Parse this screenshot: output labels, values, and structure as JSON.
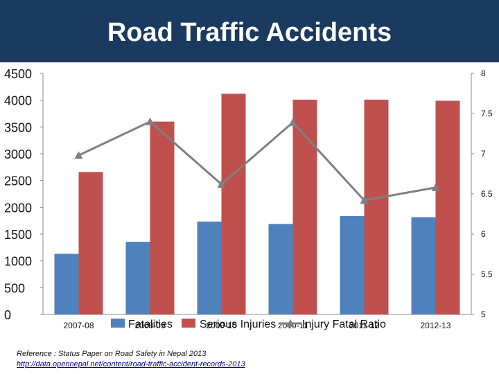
{
  "title": "Road Traffic Accidents",
  "colors": {
    "title_bg": "#1a3a5f",
    "fatalities": "#4f81bd",
    "serious_injuries": "#c0504d",
    "ratio": "#7f7f7f"
  },
  "chart_data": {
    "type": "bar",
    "title": "Road Traffic Accidents",
    "categories": [
      "2007-08",
      "2008-09",
      "2009-10",
      "2010-11",
      "2011-12",
      "2012-13"
    ],
    "series": [
      {
        "name": "Fatalities",
        "type": "bar",
        "axis": "left",
        "values": [
          1131,
          1356,
          1734,
          1689,
          1837,
          1816
        ]
      },
      {
        "name": "Serious Injuries",
        "type": "bar",
        "axis": "left",
        "values": [
          2660,
          3600,
          4120,
          4010,
          4010,
          3990
        ]
      },
      {
        "name": "Injury Fatal Ratio",
        "type": "line",
        "axis": "right",
        "values": [
          6.98,
          7.4,
          6.62,
          7.39,
          6.42,
          6.58
        ]
      }
    ],
    "left_axis": {
      "ylim": [
        0,
        4500
      ],
      "ticks": [
        "0",
        "500",
        "1000",
        "1500",
        "2000",
        "2500",
        "3000",
        "3500",
        "4000",
        "4500"
      ]
    },
    "right_axis": {
      "ylim": [
        5,
        8
      ],
      "ticks": [
        "5",
        "5.5",
        "6",
        "6.5",
        "7",
        "7.5",
        "8"
      ]
    },
    "grid": false,
    "legend": "bottom"
  },
  "reference": {
    "label": "Reference",
    "text": "Status Paper on Road Safety in Nepal 2013",
    "link": "http://data.opennepal.net/content/road-traffic-accident-records-2013"
  }
}
